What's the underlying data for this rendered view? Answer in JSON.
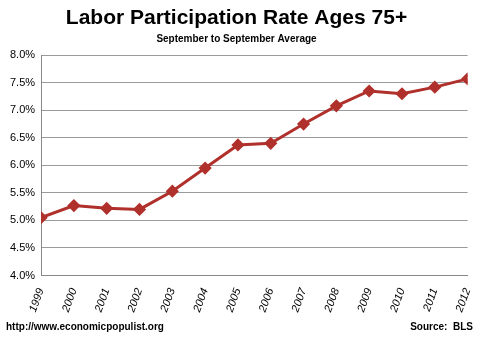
{
  "chart_data": {
    "type": "line",
    "title": "Labor Participation Rate Ages 75+",
    "subtitle": "September to September Average",
    "annotations": [
      "http://www.economicpopulist.org",
      "Source:  BLS"
    ],
    "categories": [
      "1999",
      "2000",
      "2001",
      "2002",
      "2003",
      "2004",
      "2005",
      "2006",
      "2007",
      "2008",
      "2009",
      "2010",
      "2011",
      "2012"
    ],
    "values": [
      5.05,
      5.27,
      5.22,
      5.2,
      5.53,
      5.95,
      6.37,
      6.4,
      6.75,
      7.08,
      7.35,
      7.3,
      7.42,
      7.57
    ],
    "color": "#b0302c",
    "marker": "diamond",
    "line_style": "solid",
    "ylim": [
      4,
      8
    ],
    "yticks": [
      {
        "value": 4,
        "label": "4.0%"
      },
      {
        "value": 4.5,
        "label": "4.5%"
      },
      {
        "value": 5,
        "label": "5.0%"
      },
      {
        "value": 5.5,
        "label": "5.5%"
      },
      {
        "value": 6,
        "label": "6.0%"
      },
      {
        "value": 6.5,
        "label": "6.5%"
      },
      {
        "value": 7,
        "label": "7.0%"
      },
      {
        "value": 7.5,
        "label": "7.5%"
      },
      {
        "value": 8,
        "label": "8.0%"
      }
    ],
    "grid": true
  }
}
